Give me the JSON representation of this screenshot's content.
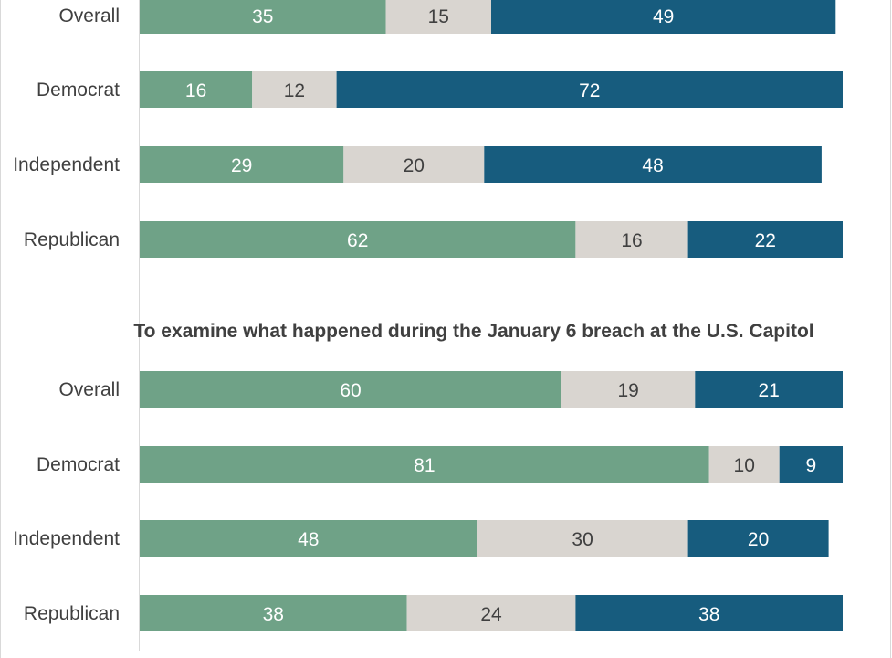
{
  "chart_data": [
    {
      "type": "bar",
      "orientation": "horizontal",
      "stacked": true,
      "title": "",
      "categories": [
        "Overall",
        "Democrat",
        "Independent",
        "Republican"
      ],
      "series": [
        {
          "values": [
            35,
            16,
            29,
            62
          ]
        },
        {
          "values": [
            15,
            12,
            20,
            16
          ]
        },
        {
          "values": [
            49,
            72,
            48,
            22
          ]
        }
      ],
      "xlim": [
        0,
        100
      ],
      "grid": false
    },
    {
      "type": "bar",
      "orientation": "horizontal",
      "stacked": true,
      "title": "To examine what happened during the January 6 breach at the U.S. Capitol",
      "categories": [
        "Overall",
        "Democrat",
        "Independent",
        "Republican"
      ],
      "series": [
        {
          "values": [
            60,
            81,
            48,
            38
          ]
        },
        {
          "values": [
            19,
            10,
            30,
            24
          ]
        },
        {
          "values": [
            21,
            9,
            20,
            38
          ]
        }
      ],
      "xlim": [
        0,
        100
      ],
      "grid": false
    }
  ],
  "colors": {
    "series": [
      "#6fa287",
      "#d9d5d0",
      "#175c7e"
    ],
    "label_on_dark": "#ffffff",
    "label_on_light": "#404040",
    "axis_line": "#d9d9d9",
    "text": "#404040"
  }
}
